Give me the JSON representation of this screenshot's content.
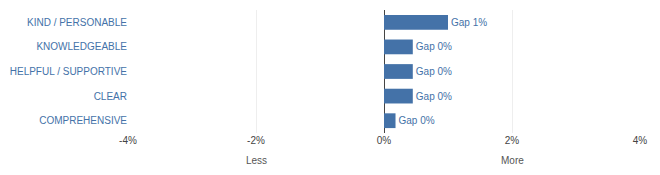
{
  "chart_data": {
    "type": "bar",
    "orientation": "horizontal",
    "categories": [
      "KIND / PERSONABLE",
      "KNOWLEDGEABLE",
      "HELPFUL / SUPPORTIVE",
      "CLEAR",
      "COMPREHENSIVE"
    ],
    "values": [
      1.0,
      0.45,
      0.45,
      0.45,
      0.18
    ],
    "value_labels": [
      "Gap 1%",
      "Gap 0%",
      "Gap 0%",
      "Gap 0%",
      "Gap 0%"
    ],
    "data_labels": true,
    "color": "#4472a8",
    "xlim": [
      -4,
      4
    ],
    "xticks": [
      {
        "value": -4,
        "label": "-4%"
      },
      {
        "value": -2,
        "label": "-2%"
      },
      {
        "value": 0,
        "label": "0%"
      },
      {
        "value": 2,
        "label": "2%"
      },
      {
        "value": 4,
        "label": "4%"
      }
    ],
    "annotations": [
      {
        "text": "Less",
        "x": -2
      },
      {
        "text": "More",
        "x": 2
      }
    ],
    "grid": true
  }
}
